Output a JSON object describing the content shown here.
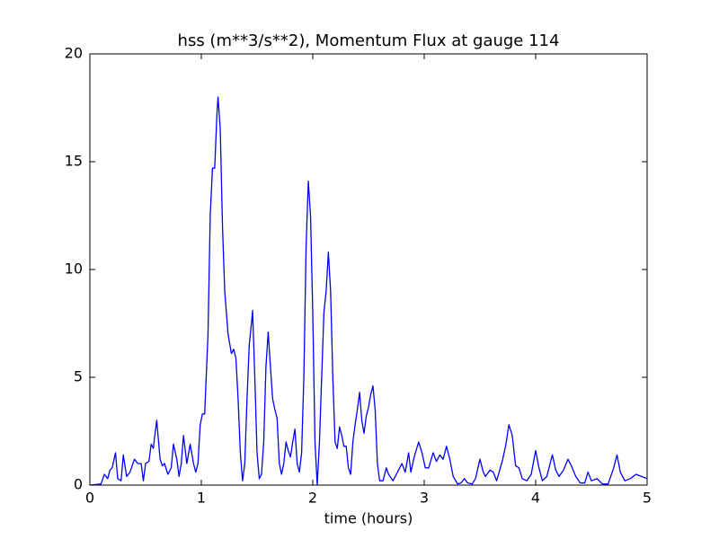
{
  "chart_data": {
    "type": "line",
    "title": "hss (m**3/s**2), Momentum Flux at gauge 114",
    "xlabel": "time (hours)",
    "xlim": [
      0,
      5
    ],
    "xticks": [
      0,
      1,
      2,
      3,
      4,
      5
    ],
    "ylim": [
      0,
      20
    ],
    "yticks": [
      0,
      5,
      10,
      15,
      20
    ],
    "grid": false,
    "hlines": [
      {
        "y": 0,
        "color": "#000000",
        "style": "dashed"
      }
    ],
    "series": [
      {
        "color": "#0000ff",
        "x": [
          0,
          0.1,
          0.13,
          0.16,
          0.18,
          0.2,
          0.23,
          0.25,
          0.28,
          0.3,
          0.33,
          0.36,
          0.4,
          0.43,
          0.46,
          0.48,
          0.5,
          0.53,
          0.55,
          0.57,
          0.58,
          0.6,
          0.63,
          0.65,
          0.67,
          0.7,
          0.73,
          0.75,
          0.78,
          0.8,
          0.82,
          0.84,
          0.87,
          0.9,
          0.93,
          0.95,
          0.97,
          0.99,
          1.01,
          1.03,
          1.06,
          1.08,
          1.1,
          1.12,
          1.14,
          1.15,
          1.17,
          1.19,
          1.21,
          1.24,
          1.27,
          1.29,
          1.31,
          1.33,
          1.35,
          1.37,
          1.39,
          1.41,
          1.43,
          1.45,
          1.46,
          1.48,
          1.5,
          1.52,
          1.54,
          1.56,
          1.58,
          1.6,
          1.62,
          1.64,
          1.66,
          1.68,
          1.7,
          1.72,
          1.74,
          1.76,
          1.78,
          1.8,
          1.82,
          1.84,
          1.86,
          1.88,
          1.9,
          1.92,
          1.94,
          1.96,
          1.98,
          2.0,
          2.02,
          2.04,
          2.06,
          2.08,
          2.1,
          2.12,
          2.14,
          2.16,
          2.18,
          2.2,
          2.22,
          2.24,
          2.26,
          2.28,
          2.3,
          2.32,
          2.34,
          2.36,
          2.38,
          2.4,
          2.42,
          2.44,
          2.46,
          2.48,
          2.5,
          2.52,
          2.54,
          2.56,
          2.58,
          2.6,
          2.63,
          2.66,
          2.68,
          2.72,
          2.76,
          2.8,
          2.83,
          2.86,
          2.88,
          2.91,
          2.95,
          2.98,
          3.01,
          3.04,
          3.08,
          3.11,
          3.14,
          3.17,
          3.2,
          3.23,
          3.26,
          3.3,
          3.33,
          3.36,
          3.39,
          3.43,
          3.46,
          3.5,
          3.53,
          3.55,
          3.59,
          3.62,
          3.65,
          3.7,
          3.73,
          3.76,
          3.79,
          3.82,
          3.85,
          3.88,
          3.92,
          3.96,
          4.0,
          4.03,
          4.06,
          4.1,
          4.15,
          4.18,
          4.21,
          4.25,
          4.29,
          4.32,
          4.36,
          4.4,
          4.44,
          4.47,
          4.5,
          4.55,
          4.6,
          4.65,
          4.7,
          4.73,
          4.76,
          4.8,
          4.85,
          4.9,
          4.95,
          5.0
        ],
        "values": [
          0,
          0.05,
          0.5,
          0.3,
          0.7,
          0.8,
          1.5,
          0.3,
          0.2,
          1.4,
          0.4,
          0.6,
          1.2,
          1.0,
          1.0,
          0.2,
          1.0,
          1.1,
          1.9,
          1.7,
          2.2,
          3.0,
          1.2,
          0.9,
          1.0,
          0.5,
          0.8,
          1.9,
          1.2,
          0.4,
          1.0,
          2.3,
          1.0,
          1.9,
          1.0,
          0.6,
          1.0,
          2.8,
          3.3,
          3.3,
          7,
          12.5,
          14.7,
          14.7,
          17.2,
          18.0,
          16.5,
          12.0,
          9.0,
          7.0,
          6.1,
          6.3,
          5.9,
          4.0,
          1.5,
          0.2,
          1.0,
          4.0,
          6.5,
          7.5,
          8.1,
          5.0,
          1.5,
          0.3,
          0.5,
          2.0,
          5.5,
          7.1,
          5.5,
          4.0,
          3.5,
          3.1,
          1.0,
          0.5,
          1.0,
          2.0,
          1.6,
          1.3,
          2.0,
          2.6,
          1.0,
          0.6,
          1.5,
          5.0,
          11.0,
          14.1,
          12.5,
          8.0,
          2.0,
          0.0,
          2.0,
          5.0,
          8.0,
          9.0,
          10.8,
          9.0,
          5.0,
          2.0,
          1.7,
          2.7,
          2.3,
          1.8,
          1.8,
          0.8,
          0.5,
          2.0,
          2.8,
          3.5,
          4.3,
          3.0,
          2.4,
          3.2,
          3.6,
          4.2,
          4.6,
          3.5,
          1.0,
          0.2,
          0.2,
          0.8,
          0.5,
          0.2,
          0.6,
          1.0,
          0.6,
          1.5,
          0.6,
          1.3,
          2.0,
          1.5,
          0.8,
          0.8,
          1.5,
          1.1,
          1.4,
          1.2,
          1.8,
          1.2,
          0.4,
          0.05,
          0.1,
          0.3,
          0.1,
          0.05,
          0.3,
          1.2,
          0.6,
          0.4,
          0.7,
          0.6,
          0.2,
          1.1,
          1.8,
          2.8,
          2.3,
          0.9,
          0.8,
          0.3,
          0.2,
          0.5,
          1.6,
          0.8,
          0.2,
          0.4,
          1.4,
          0.7,
          0.4,
          0.7,
          1.2,
          0.9,
          0.4,
          0.1,
          0.1,
          0.6,
          0.2,
          0.3,
          0.05,
          0.05,
          0.8,
          1.4,
          0.6,
          0.2,
          0.3,
          0.5,
          0.4,
          0.3
        ]
      }
    ]
  }
}
